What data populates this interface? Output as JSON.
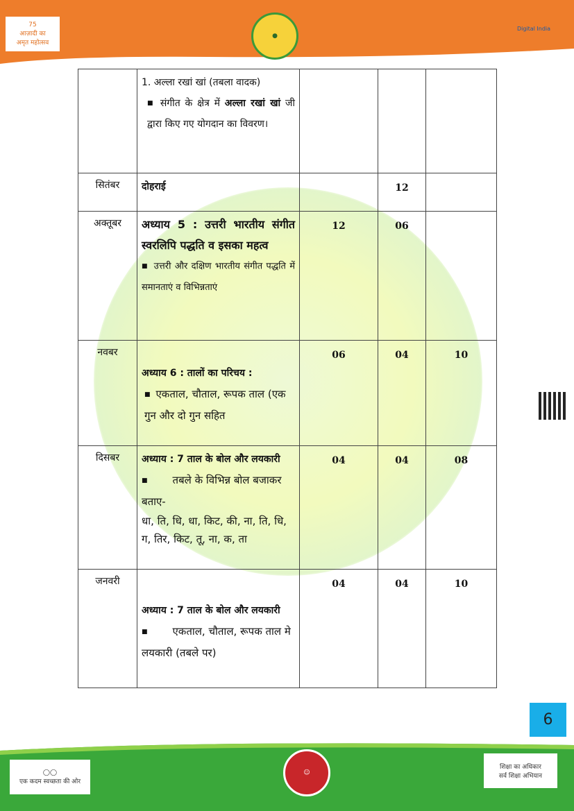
{
  "header": {
    "logo_left": "आज़ादी का अमृत महोत्सव",
    "logo_center": "Board emblem",
    "logo_right": "Digital India",
    "colors": {
      "band": "#ee7d2b"
    }
  },
  "rows": [
    {
      "month": "",
      "content": {
        "heading": "1.  अल्ला रखां खां (तबला वादक)",
        "bullets": [
          "संगीत के क्षेत्र में अल्ला रखां खां जी द्वारा किए गए योगदान का विवरण।"
        ],
        "bullet_bold": "अल्ला रखां खां",
        "bullet_pre": "संगीत के क्षेत्र में ",
        "bullet_post": " जी द्वारा किए गए योगदान का विवरण।"
      },
      "c3": "",
      "c4": "",
      "c5": ""
    },
    {
      "month": "सितंबर",
      "content": {
        "heading": "दोहराई"
      },
      "c3": "",
      "c4": "12",
      "c5": ""
    },
    {
      "month": "अक्तूबर",
      "content": {
        "heading": "अध्याय 5 :      उत्तरी भारतीय संगीत स्वरलिपि पद्धति व इसका महत्व",
        "bullet": "उत्तरी और दक्षिण भारतीय संगीत पद्धति में समानताएं व विभिन्नताएं"
      },
      "c3": "12",
      "c4": "06",
      "c5": ""
    },
    {
      "month": "नवबर",
      "content": {
        "heading": "अध्याय 6 :      तालों का परिचय :",
        "bullet": "एकताल, चौताल, रूपक ताल (एक गुन और दो गुन सहित"
      },
      "c3": "06",
      "c4": "04",
      "c5": "10"
    },
    {
      "month": "दिसबर",
      "content": {
        "heading": "अध्याय : 7 ताल के बोल और लयकारी",
        "bullet": "तबले के विभिन्न बोल बजाकर बताए-",
        "extra": "धा, ति, धि, धा, किट, की, ना, ति, धि, ग, तिर, किट, तू, ना, क, ता"
      },
      "c3": "04",
      "c4": "04",
      "c5": "08"
    },
    {
      "month": "जनवरी",
      "content": {
        "heading": "अध्याय : 7 ताल के बोल और लयकारी",
        "bullet": "एकताल, चौताल, रूपक ताल मे लयकारी (तबले पर)"
      },
      "c3": "04",
      "c4": "04",
      "c5": "10"
    }
  ],
  "page_number": "6",
  "footer": {
    "logo_left": "स्वच्छ भारत",
    "logo_center": "बेटी बचाओ बेटी पढ़ाओ",
    "logo_right": "शिक्षा का अधिकार",
    "colors": {
      "band": "#3aa83a"
    }
  }
}
